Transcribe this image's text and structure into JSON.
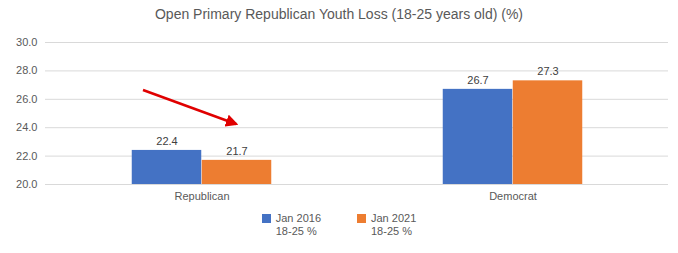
{
  "chart_data": {
    "type": "bar",
    "title": "Open Primary Republican Youth Loss (18-25 years old) (%)",
    "categories": [
      "Republican",
      "Democrat"
    ],
    "series": [
      {
        "name": "Jan 2016\n18-25 %",
        "color": "#4472c4",
        "values": [
          22.4,
          26.7
        ]
      },
      {
        "name": "Jan 2021\n18-25 %",
        "color": "#ed7d31",
        "values": [
          21.7,
          27.3
        ]
      }
    ],
    "ylim": [
      20,
      30
    ],
    "yticks": [
      {
        "value": 20,
        "label": "20.0"
      },
      {
        "value": 22,
        "label": "22.0"
      },
      {
        "value": 24,
        "label": "24.0"
      },
      {
        "value": 26,
        "label": "26.0"
      },
      {
        "value": 28,
        "label": "28.0"
      },
      {
        "value": 30,
        "label": "30.0"
      }
    ],
    "grid": true,
    "data_labels": true,
    "legend": "bottom"
  }
}
